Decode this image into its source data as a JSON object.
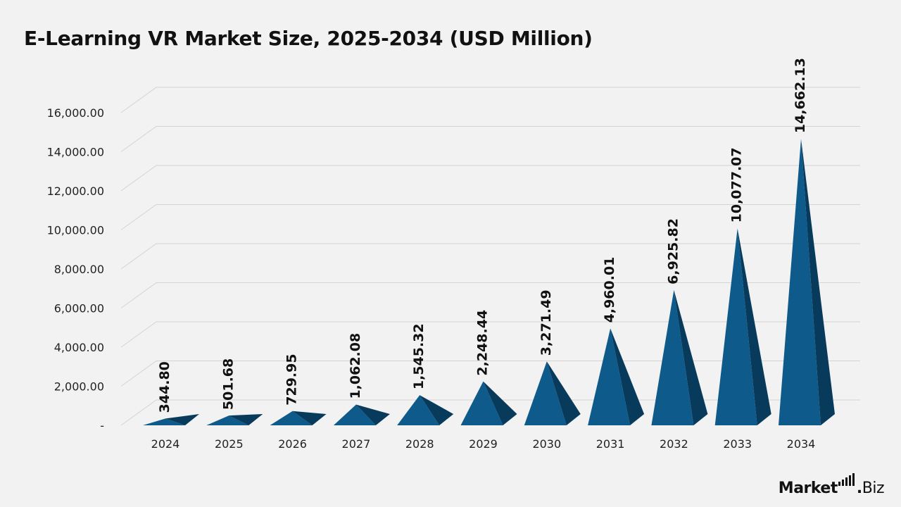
{
  "chart_data": {
    "type": "bar",
    "title": "E-Learning VR Market Size, 2025-2034 (USD Million)",
    "categories": [
      "2024",
      "2025",
      "2026",
      "2027",
      "2028",
      "2029",
      "2030",
      "2031",
      "2032",
      "2033",
      "2034"
    ],
    "values": [
      344.8,
      501.68,
      729.95,
      1062.08,
      1545.32,
      2248.44,
      3271.49,
      4960.01,
      6925.82,
      10077.07,
      14662.13
    ],
    "value_labels": [
      "344.80",
      "501.68",
      "729.95",
      "1,062.08",
      "1,545.32",
      "2,248.44",
      "3,271.49",
      "4,960.01",
      "6,925.82",
      "10,077.07",
      "14,662.13"
    ],
    "ylim": [
      0,
      16000
    ],
    "y_ticks": [
      {
        "value": 0,
        "label": "-"
      },
      {
        "value": 2000,
        "label": "2,000.00"
      },
      {
        "value": 4000,
        "label": "4,000.00"
      },
      {
        "value": 6000,
        "label": "6,000.00"
      },
      {
        "value": 8000,
        "label": "8,000.00"
      },
      {
        "value": 10000,
        "label": "10,000.00"
      },
      {
        "value": 12000,
        "label": "12,000.00"
      },
      {
        "value": 14000,
        "label": "14,000.00"
      },
      {
        "value": 16000,
        "label": "16,000.00"
      }
    ],
    "xlabel": "",
    "ylabel": "",
    "grid": true,
    "legend": "none",
    "mark_shape": "3d-pyramid",
    "colors": {
      "front_face": "#0e5a8a",
      "side_face": "#083a5c",
      "front_face_light": "#12679c",
      "gridline": "#d3d3d3",
      "background": "#f2f2f2"
    }
  },
  "brand": {
    "name_bold": "Market",
    "dot": ".",
    "name_light": "Biz",
    "icon": "bar-chart-icon"
  }
}
